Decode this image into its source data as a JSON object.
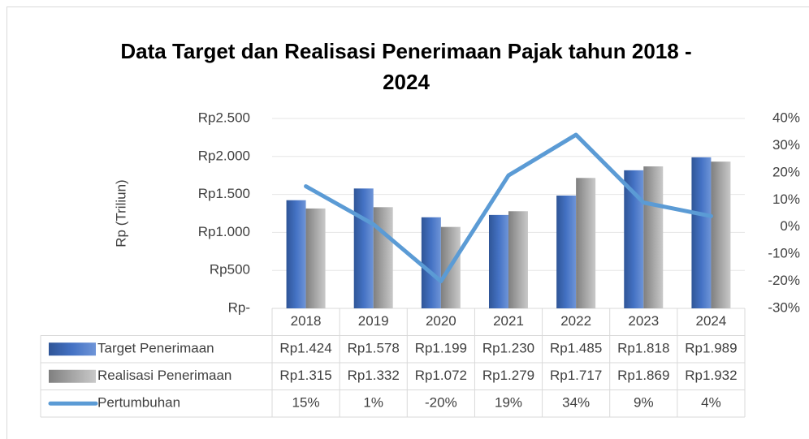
{
  "chart_data": {
    "type": "bar_line_table",
    "title": "Data Target dan Realisasi Penerimaan Pajak tahun 2018 - 2024",
    "y_axis_label": "Rp (Triliun)",
    "categories": [
      "2018",
      "2019",
      "2020",
      "2021",
      "2022",
      "2023",
      "2024"
    ],
    "series": [
      {
        "name": "Target Penerimaan",
        "type": "bar",
        "color": "#4472c4",
        "values": [
          1424,
          1578,
          1199,
          1230,
          1485,
          1818,
          1989
        ],
        "value_labels": [
          "Rp1.424",
          "Rp1.578",
          "Rp1.199",
          "Rp1.230",
          "Rp1.485",
          "Rp1.818",
          "Rp1.989"
        ]
      },
      {
        "name": "Realisasi Penerimaan",
        "type": "bar",
        "color": "#a5a5a5",
        "values": [
          1315,
          1332,
          1072,
          1279,
          1717,
          1869,
          1932
        ],
        "value_labels": [
          "Rp1.315",
          "Rp1.332",
          "Rp1.072",
          "Rp1.279",
          "Rp1.717",
          "Rp1.869",
          "Rp1.932"
        ]
      },
      {
        "name": "Pertumbuhan",
        "type": "line",
        "color": "#5b9bd5",
        "axis": "y2",
        "values": [
          15,
          1,
          -20,
          19,
          34,
          9,
          4
        ],
        "value_labels": [
          "15%",
          "1%",
          "-20%",
          "19%",
          "34%",
          "9%",
          "4%"
        ]
      }
    ],
    "ylim": [
      0,
      2500
    ],
    "yticks": [
      {
        "value": 0,
        "label": "Rp-"
      },
      {
        "value": 500,
        "label": "Rp500"
      },
      {
        "value": 1000,
        "label": "Rp1.000"
      },
      {
        "value": 1500,
        "label": "Rp1.500"
      },
      {
        "value": 2000,
        "label": "Rp2.000"
      },
      {
        "value": 2500,
        "label": "Rp2.500"
      }
    ],
    "y2lim": [
      -30,
      40
    ],
    "y2ticks": [
      {
        "value": -30,
        "label": "-30%"
      },
      {
        "value": -20,
        "label": "-20%"
      },
      {
        "value": -10,
        "label": "-10%"
      },
      {
        "value": 0,
        "label": "0%"
      },
      {
        "value": 10,
        "label": "10%"
      },
      {
        "value": 20,
        "label": "20%"
      },
      {
        "value": 30,
        "label": "30%"
      },
      {
        "value": 40,
        "label": "40%"
      }
    ],
    "grid": true
  }
}
